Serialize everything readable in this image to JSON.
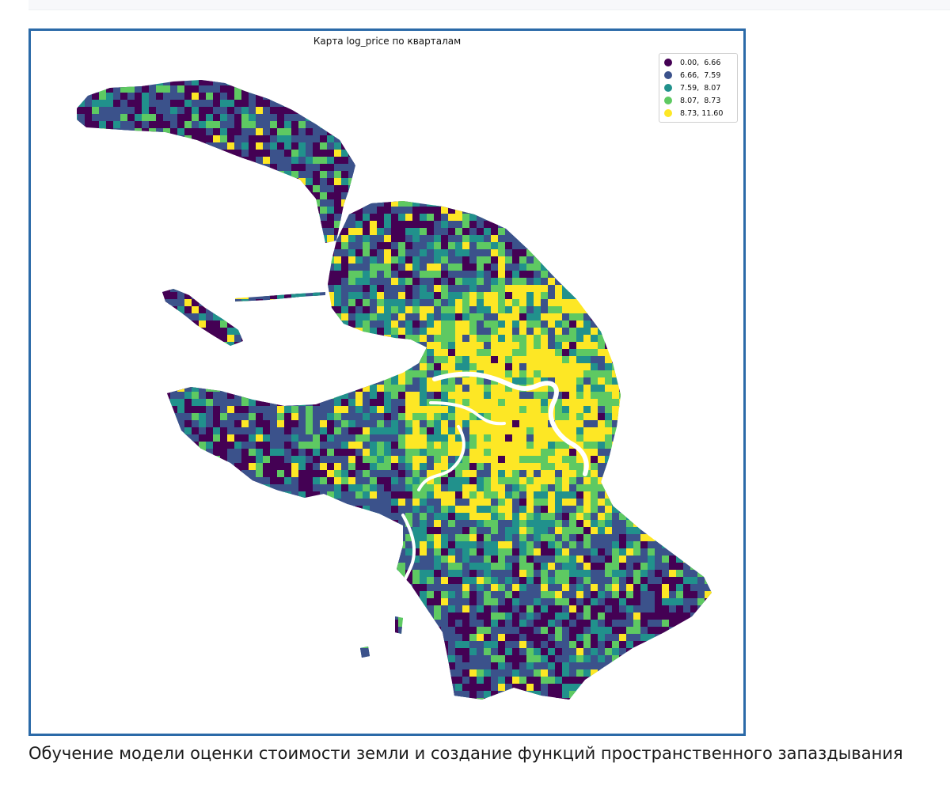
{
  "figure": {
    "title": "Карта log_price по кварталам",
    "caption": "Обучение модели оценки стоимости земли и создание функций пространственного запаздывания"
  },
  "legend": {
    "placement": "top-right",
    "items": [
      {
        "label": "0.00,  6.66",
        "color": "#440154"
      },
      {
        "label": "6.66,  7.59",
        "color": "#3b528b"
      },
      {
        "label": "7.59,  8.07",
        "color": "#21918c"
      },
      {
        "label": "8.07,  8.73",
        "color": "#5ec962"
      },
      {
        "label": "8.73, 11.60",
        "color": "#fde725"
      }
    ]
  },
  "colors": {
    "frame": "#2b6aa8",
    "water": "#ffffff",
    "class_0": "#440154",
    "class_1": "#3b528b",
    "class_2": "#21918c",
    "class_3": "#5ec962",
    "class_4": "#fde725"
  }
}
